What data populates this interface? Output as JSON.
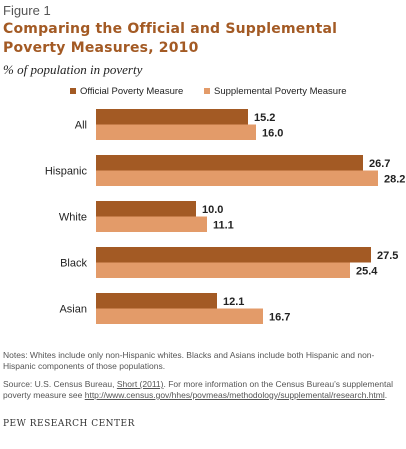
{
  "figure_label": "Figure 1",
  "title": "Comparing the Official and Supplemental Poverty Measures, 2010",
  "subtitle": "% of population in poverty",
  "colors": {
    "official": "#a35a24",
    "supplemental": "#e39b69"
  },
  "chart_data": {
    "type": "bar",
    "orientation": "horizontal",
    "categories": [
      "All",
      "Hispanic",
      "White",
      "Black",
      "Asian"
    ],
    "series": [
      {
        "name": "Official Poverty Measure",
        "values": [
          15.2,
          26.7,
          10.0,
          27.5,
          12.1
        ],
        "labels": [
          "15.2",
          "26.7",
          "10.0",
          "27.5",
          "12.1"
        ]
      },
      {
        "name": "Supplemental Poverty Measure",
        "values": [
          16.0,
          28.2,
          11.1,
          25.4,
          16.7
        ],
        "labels": [
          "16.0",
          "28.2",
          "11.1",
          "25.4",
          "16.7"
        ]
      }
    ],
    "legend_position": "top",
    "grid": false
  },
  "notes": "Notes: Whites include only non-Hispanic whites. Blacks and Asians include both Hispanic and non-Hispanic components of those populations.",
  "source": {
    "prefix": "Source: U.S. Census Bureau, ",
    "link1": "Short (2011)",
    "middle": ". For more information on the Census Bureau’s supplemental poverty measure see ",
    "link2": "http://www.census.gov/hhes/povmeas/methodology/supplemental/research.html",
    "suffix": "."
  },
  "credit": "PEW RESEARCH CENTER"
}
